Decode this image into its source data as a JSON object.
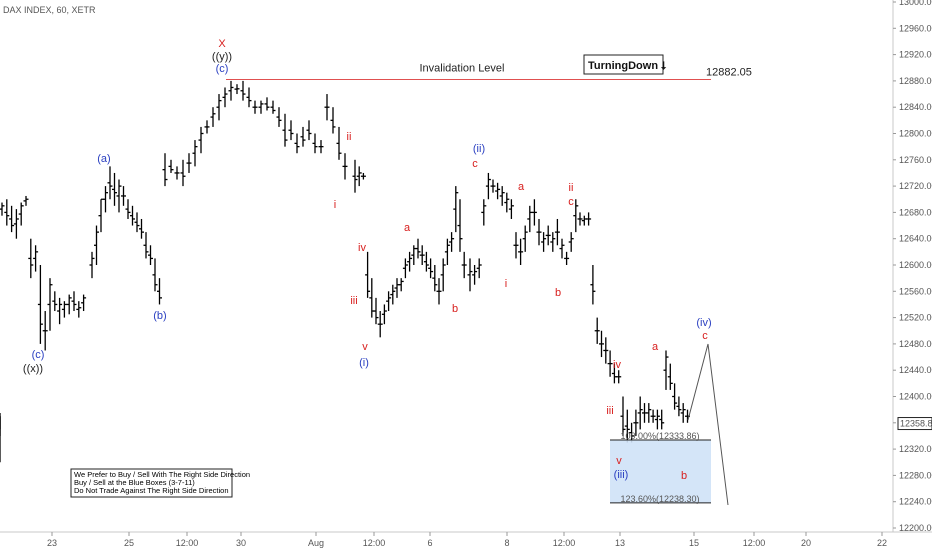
{
  "header": {
    "symbol_line": "DAX INDEX, 60, XETR"
  },
  "colors": {
    "wave_blue": "#2a3fc1",
    "wave_red": "#d8201f",
    "text_dark": "#222222",
    "invalidation_line": "#e05050",
    "target_box": "#cfe2f7"
  },
  "chart_data": {
    "type": "ohlc-bars",
    "title": "",
    "y_axis": {
      "ylim": [
        12200,
        13000
      ],
      "ticks": [
        "13000.00",
        "12960.00",
        "12920.00",
        "12880.00",
        "12840.00",
        "12800.00",
        "12760.00",
        "12720.00",
        "12680.00",
        "12640.00",
        "12600.00",
        "12560.00",
        "12520.00",
        "12480.00",
        "12440.00",
        "12400.00",
        "12360.00",
        "12320.00",
        "12280.00",
        "12240.00",
        "12200.00"
      ],
      "last_price": "12358.87"
    },
    "x_axis": {
      "ticks": [
        "23",
        "25",
        "12:00",
        "30",
        "Aug",
        "12:00",
        "6",
        "8",
        "12:00",
        "13",
        "15",
        "12:00",
        "20",
        "22"
      ]
    },
    "invalidation": {
      "label": "Invalidation Level",
      "value": 12882.05,
      "value_label": "12882.05"
    },
    "badge": {
      "text": "TurningDown",
      "arrow": "⭣"
    },
    "fib_levels": [
      {
        "label": "100.00%(12333.86)",
        "value": 12333.86
      },
      {
        "label": "123.60%(12238.30)",
        "value": 12238.3
      }
    ],
    "bars": [
      [
        12695,
        12675,
        12690
      ],
      [
        12700,
        12660,
        12675
      ],
      [
        12690,
        12650,
        12660
      ],
      [
        12685,
        12640,
        12670
      ],
      [
        12695,
        12660,
        12690
      ],
      [
        12705,
        12690,
        12700
      ],
      [
        12640,
        12580,
        12600
      ],
      [
        12630,
        12590,
        12620
      ],
      [
        12600,
        12480,
        12510
      ],
      [
        12530,
        12470,
        12500
      ],
      [
        12580,
        12500,
        12570
      ],
      [
        12560,
        12530,
        12540
      ],
      [
        12550,
        12510,
        12540
      ],
      [
        12545,
        12520,
        12540
      ],
      [
        12555,
        12525,
        12550
      ],
      [
        12560,
        12530,
        12540
      ],
      [
        12545,
        12520,
        12535
      ],
      [
        12555,
        12530,
        12550
      ],
      [
        12620,
        12580,
        12610
      ],
      [
        12660,
        12600,
        12650
      ],
      [
        12700,
        12650,
        12700
      ],
      [
        12720,
        12680,
        12710
      ],
      [
        12750,
        12700,
        12720
      ],
      [
        12740,
        12690,
        12710
      ],
      [
        12730,
        12680,
        12720
      ],
      [
        12720,
        12690,
        12705
      ],
      [
        12700,
        12670,
        12680
      ],
      [
        12690,
        12660,
        12670
      ],
      [
        12680,
        12650,
        12660
      ],
      [
        12670,
        12640,
        12650
      ],
      [
        12650,
        12610,
        12620
      ],
      [
        12630,
        12600,
        12610
      ],
      [
        12610,
        12560,
        12570
      ],
      [
        12580,
        12540,
        12550
      ],
      [
        12770,
        12720,
        12730
      ],
      [
        12760,
        12740,
        12745
      ],
      [
        12750,
        12730,
        12740
      ],
      [
        12760,
        12720,
        12735
      ],
      [
        12770,
        12740,
        12755
      ],
      [
        12790,
        12750,
        12780
      ],
      [
        12810,
        12770,
        12800
      ],
      [
        12820,
        12800,
        12810
      ],
      [
        12840,
        12810,
        12830
      ],
      [
        12860,
        12820,
        12850
      ],
      [
        12870,
        12840,
        12860
      ],
      [
        12880,
        12850,
        12870
      ],
      [
        12875,
        12860,
        12868
      ],
      [
        12880,
        12850,
        12860
      ],
      [
        12870,
        12840,
        12850
      ],
      [
        12850,
        12830,
        12840
      ],
      [
        12850,
        12830,
        12845
      ],
      [
        12855,
        12835,
        12840
      ],
      [
        12850,
        12830,
        12835
      ],
      [
        12840,
        12810,
        12820
      ],
      [
        12830,
        12780,
        12790
      ],
      [
        12820,
        12790,
        12800
      ],
      [
        12800,
        12770,
        12780
      ],
      [
        12810,
        12780,
        12790
      ],
      [
        12820,
        12790,
        12800
      ],
      [
        12800,
        12770,
        12780
      ],
      [
        12790,
        12770,
        12780
      ],
      [
        12860,
        12820,
        12840
      ],
      [
        12840,
        12800,
        12810
      ],
      [
        12810,
        12760,
        12770
      ],
      [
        12770,
        12730,
        12750
      ],
      [
        12760,
        12710,
        12730
      ],
      [
        12750,
        12720,
        12740
      ],
      [
        12740,
        12730,
        12735
      ],
      [
        12620,
        12550,
        12560
      ],
      [
        12580,
        12520,
        12530
      ],
      [
        12550,
        12510,
        12520
      ],
      [
        12530,
        12490,
        12510
      ],
      [
        12540,
        12510,
        12530
      ],
      [
        12560,
        12530,
        12550
      ],
      [
        12570,
        12540,
        12560
      ],
      [
        12580,
        12550,
        12570
      ],
      [
        12580,
        12560,
        12575
      ],
      [
        12610,
        12580,
        12600
      ],
      [
        12620,
        12590,
        12610
      ],
      [
        12630,
        12600,
        12625
      ],
      [
        12640,
        12610,
        12620
      ],
      [
        12630,
        12600,
        12615
      ],
      [
        12620,
        12590,
        12600
      ],
      [
        12610,
        12580,
        12590
      ],
      [
        12600,
        12560,
        12570
      ],
      [
        12580,
        12540,
        12560
      ],
      [
        12610,
        12560,
        12600
      ],
      [
        12640,
        12600,
        12630
      ],
      [
        12650,
        12620,
        12640
      ],
      [
        12720,
        12650,
        12710
      ],
      [
        12700,
        12620,
        12640
      ],
      [
        12620,
        12580,
        12600
      ],
      [
        12610,
        12560,
        12590
      ],
      [
        12600,
        12570,
        12590
      ],
      [
        12610,
        12580,
        12600
      ],
      [
        12700,
        12660,
        12690
      ],
      [
        12740,
        12700,
        12730
      ],
      [
        12730,
        12710,
        12720
      ],
      [
        12725,
        12700,
        12715
      ],
      [
        12720,
        12690,
        12710
      ],
      [
        12710,
        12680,
        12700
      ],
      [
        12700,
        12670,
        12690
      ],
      [
        12650,
        12610,
        12630
      ],
      [
        12640,
        12600,
        12620
      ],
      [
        12660,
        12620,
        12650
      ],
      [
        12690,
        12650,
        12680
      ],
      [
        12700,
        12660,
        12680
      ],
      [
        12670,
        12630,
        12650
      ],
      [
        12650,
        12620,
        12640
      ],
      [
        12660,
        12630,
        12645
      ],
      [
        12650,
        12620,
        12640
      ],
      [
        12670,
        12630,
        12650
      ],
      [
        12640,
        12610,
        12630
      ],
      [
        12620,
        12600,
        12610
      ],
      [
        12650,
        12620,
        12640
      ],
      [
        12700,
        12650,
        12690
      ],
      [
        12680,
        12660,
        12670
      ],
      [
        12675,
        12660,
        12670
      ],
      [
        12680,
        12660,
        12670
      ],
      [
        12600,
        12540,
        12560
      ],
      [
        12520,
        12480,
        12500
      ],
      [
        12500,
        12460,
        12480
      ],
      [
        12490,
        12450,
        12470
      ],
      [
        12470,
        12430,
        12450
      ],
      [
        12450,
        12420,
        12430
      ],
      [
        12440,
        12420,
        12430
      ],
      [
        12400,
        12340,
        12350
      ],
      [
        12380,
        12330,
        12350
      ],
      [
        12360,
        12330,
        12340
      ],
      [
        12380,
        12340,
        12360
      ],
      [
        12400,
        12350,
        12380
      ],
      [
        12390,
        12360,
        12375
      ],
      [
        12390,
        12360,
        12380
      ],
      [
        12380,
        12360,
        12370
      ],
      [
        12380,
        12350,
        12370
      ],
      [
        12380,
        12350,
        12360
      ],
      [
        12470,
        12410,
        12460
      ],
      [
        12450,
        12410,
        12420
      ],
      [
        12420,
        12380,
        12390
      ],
      [
        12400,
        12370,
        12380
      ],
      [
        12390,
        12360,
        12380
      ],
      [
        12380,
        12360,
        12370
      ],
      [
        12375,
        12350,
        12360
      ],
      [
        12370,
        12300,
        12340
      ],
      [
        12370,
        12340,
        12360
      ]
    ],
    "projection": {
      "label": "Projected path",
      "points": [
        [
          12358.87,
          12480
        ],
        [
          12480,
          12250
        ]
      ]
    },
    "wave_labels": [
      {
        "text": "X",
        "color": "red"
      },
      {
        "text": "((y))",
        "color": "dark"
      },
      {
        "text": "(c)",
        "color": "blue"
      },
      {
        "text": "(a)",
        "color": "blue"
      },
      {
        "text": "(b)",
        "color": "blue"
      },
      {
        "text": "(c)",
        "color": "blue"
      },
      {
        "text": "((x))",
        "color": "dark"
      },
      {
        "text": "ii",
        "color": "red"
      },
      {
        "text": "i",
        "color": "red"
      },
      {
        "text": "iv",
        "color": "red"
      },
      {
        "text": "iii",
        "color": "red"
      },
      {
        "text": "v",
        "color": "red"
      },
      {
        "text": "(i)",
        "color": "blue"
      },
      {
        "text": "a",
        "color": "red"
      },
      {
        "text": "b",
        "color": "red"
      },
      {
        "text": "(ii)",
        "color": "blue"
      },
      {
        "text": "c",
        "color": "red"
      },
      {
        "text": "a",
        "color": "red"
      },
      {
        "text": "i",
        "color": "red"
      },
      {
        "text": "ii",
        "color": "red"
      },
      {
        "text": "c",
        "color": "red"
      },
      {
        "text": "b",
        "color": "red"
      },
      {
        "text": "iv",
        "color": "red"
      },
      {
        "text": "iii",
        "color": "red"
      },
      {
        "text": "v",
        "color": "red"
      },
      {
        "text": "(iii)",
        "color": "blue"
      },
      {
        "text": "a",
        "color": "red"
      },
      {
        "text": "b",
        "color": "red"
      },
      {
        "text": "(iv)",
        "color": "blue"
      },
      {
        "text": "c",
        "color": "red"
      }
    ]
  },
  "notice": {
    "line1": "We Prefer to Buy / Sell With The Right Side Direction",
    "line2": "Buy / Sell at the Blue Boxes (3-7-11)",
    "line3": "Do Not Trade Against The Right Side Direction"
  }
}
